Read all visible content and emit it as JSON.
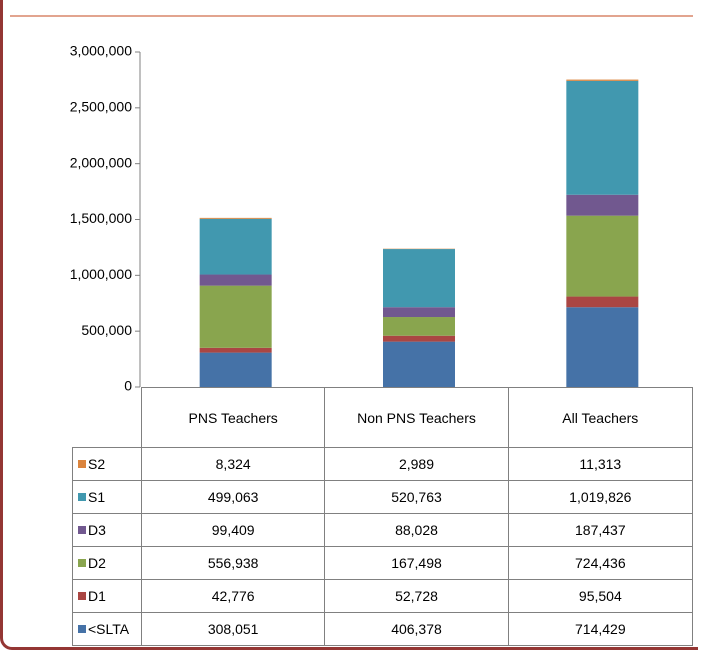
{
  "chart_data": {
    "type": "bar",
    "stacked": true,
    "categories": [
      "PNS Teachers",
      "Non PNS Teachers",
      "All Teachers"
    ],
    "series": [
      {
        "name": "<SLTA",
        "color": "#4572a7",
        "values": [
          308051,
          406378,
          714429
        ],
        "value_labels": [
          "308,051",
          "406,378",
          "714,429"
        ]
      },
      {
        "name": "D1",
        "color": "#aa4643",
        "values": [
          42776,
          52728,
          95504
        ],
        "value_labels": [
          "42,776",
          "52,728",
          "95,504"
        ]
      },
      {
        "name": "D2",
        "color": "#89a54e",
        "values": [
          556938,
          167498,
          724436
        ],
        "value_labels": [
          "556,938",
          "167,498",
          "724,436"
        ]
      },
      {
        "name": "D3",
        "color": "#71588f",
        "values": [
          99409,
          88028,
          187437
        ],
        "value_labels": [
          "99,409",
          "88,028",
          "187,437"
        ]
      },
      {
        "name": "S1",
        "color": "#4198af",
        "values": [
          499063,
          520763,
          1019826
        ],
        "value_labels": [
          "499,063",
          "520,763",
          "1,019,826"
        ]
      },
      {
        "name": "S2",
        "color": "#db843d",
        "values": [
          8324,
          2989,
          11313
        ],
        "value_labels": [
          "8,324",
          "2,989",
          "11,313"
        ]
      }
    ],
    "ylim": [
      0,
      3000000
    ],
    "yticks": [
      0,
      {
        "value": 500000,
        "label": "500,000"
      },
      {
        "value": 1000000,
        "label": "1,000,000"
      },
      {
        "value": 1500000,
        "label": "1,500,000"
      },
      {
        "value": 2000000,
        "label": "2,000,000"
      },
      {
        "value": 2500000,
        "label": "2,500,000"
      },
      {
        "value": 3000000,
        "label": "3,000,000"
      }
    ]
  }
}
